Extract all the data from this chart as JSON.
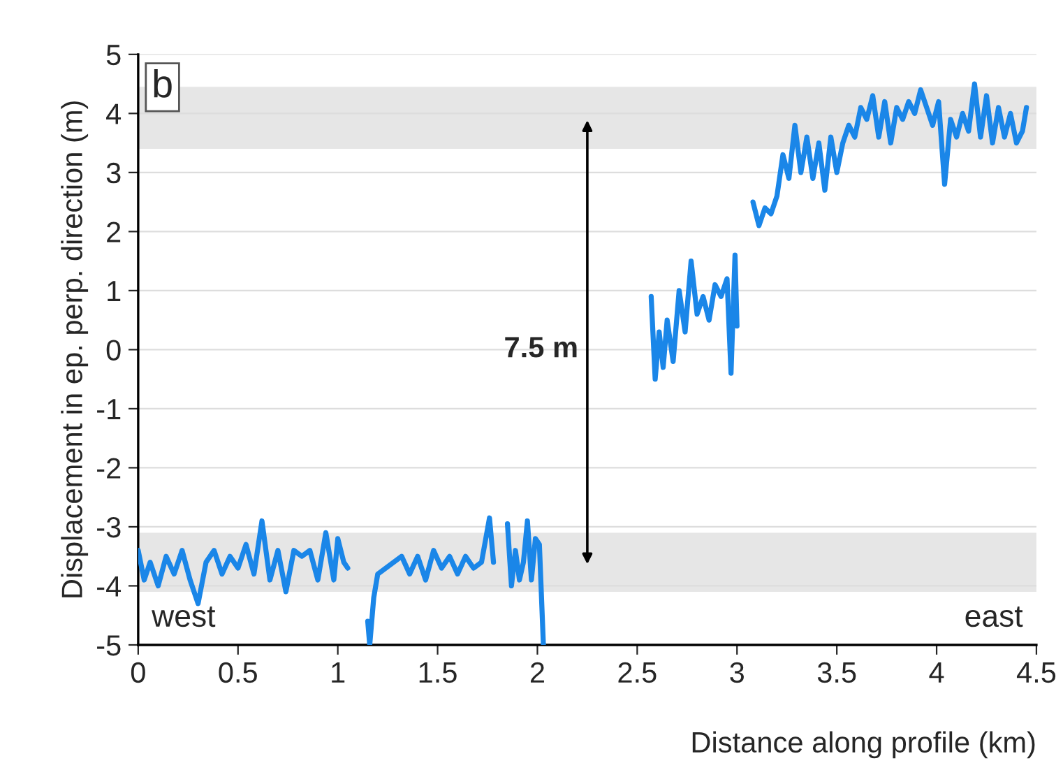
{
  "chart_data": {
    "type": "line",
    "xlabel": "Distance along profile (km)",
    "ylabel": "Displacement in ep. perp. direction (m)",
    "xlim": [
      0,
      4.5
    ],
    "xticks": [
      0,
      0.5,
      1,
      1.5,
      2,
      2.5,
      3,
      3.5,
      4,
      4.5
    ],
    "ylim": [
      -5,
      5
    ],
    "yticks": [
      -5,
      -4,
      -3,
      -2,
      -1,
      0,
      1,
      2,
      3,
      4,
      5
    ],
    "grid": "y",
    "legend": false,
    "marker": "none",
    "line_style": "solid",
    "series": [
      {
        "color": "#1a86e8",
        "x": [
          0,
          0.03,
          0.06,
          0.1,
          0.14,
          0.18,
          0.22,
          0.26,
          0.3,
          0.34,
          0.38,
          0.42,
          0.46,
          0.5,
          0.54,
          0.58,
          0.62,
          0.66,
          0.7,
          0.74,
          0.78,
          0.82,
          0.86,
          0.9,
          0.94,
          0.98,
          1.0,
          1.03,
          1.05,
          1.1,
          1.15,
          1.16,
          1.18,
          1.2,
          1.24,
          1.28,
          1.32,
          1.36,
          1.4,
          1.44,
          1.48,
          1.52,
          1.56,
          1.6,
          1.64,
          1.68,
          1.72,
          1.76,
          1.78,
          1.82,
          1.85,
          1.87,
          1.89,
          1.91,
          1.93,
          1.95,
          1.97,
          1.99,
          2.01,
          2.03,
          2.05,
          2.3,
          2.57,
          2.59,
          2.61,
          2.63,
          2.65,
          2.68,
          2.71,
          2.74,
          2.77,
          2.8,
          2.83,
          2.86,
          2.89,
          2.92,
          2.95,
          2.97,
          2.99,
          3.0,
          3.05,
          3.08,
          3.11,
          3.14,
          3.17,
          3.2,
          3.23,
          3.26,
          3.29,
          3.32,
          3.35,
          3.38,
          3.41,
          3.44,
          3.47,
          3.5,
          3.53,
          3.56,
          3.59,
          3.62,
          3.65,
          3.68,
          3.71,
          3.74,
          3.77,
          3.8,
          3.83,
          3.86,
          3.89,
          3.92,
          3.95,
          3.98,
          4.01,
          4.04,
          4.07,
          4.1,
          4.13,
          4.16,
          4.19,
          4.22,
          4.25,
          4.28,
          4.31,
          4.34,
          4.37,
          4.4,
          4.43,
          4.45
        ],
        "values": [
          -3.4,
          -3.9,
          -3.6,
          -4.0,
          -3.5,
          -3.8,
          -3.4,
          -3.9,
          -4.3,
          -3.6,
          -3.4,
          -3.8,
          -3.5,
          -3.7,
          -3.3,
          -3.8,
          -2.9,
          -3.9,
          -3.4,
          -4.1,
          -3.4,
          -3.5,
          -3.4,
          -3.9,
          -3.1,
          -3.9,
          -3.2,
          -3.6,
          -3.7,
          null,
          -4.6,
          -5.0,
          -4.2,
          -3.8,
          -3.7,
          -3.6,
          -3.5,
          -3.8,
          -3.5,
          -3.9,
          -3.4,
          -3.7,
          -3.5,
          -3.8,
          -3.5,
          -3.7,
          -3.6,
          -2.85,
          -3.6,
          null,
          -2.95,
          -4.0,
          -3.4,
          -3.9,
          -3.6,
          -2.9,
          -3.9,
          -3.2,
          -3.3,
          -5.0,
          null,
          null,
          0.9,
          -0.5,
          0.3,
          -0.3,
          0.5,
          -0.2,
          1.0,
          0.3,
          1.5,
          0.6,
          0.9,
          0.5,
          1.1,
          0.9,
          1.2,
          -0.4,
          1.6,
          0.4,
          null,
          2.5,
          2.1,
          2.4,
          2.3,
          2.6,
          3.3,
          2.9,
          3.8,
          3.0,
          3.6,
          2.9,
          3.5,
          2.7,
          3.6,
          3.0,
          3.5,
          3.8,
          3.6,
          4.1,
          3.9,
          4.3,
          3.6,
          4.2,
          3.5,
          4.1,
          3.9,
          4.2,
          4.0,
          4.4,
          4.1,
          3.8,
          4.2,
          2.8,
          3.9,
          3.6,
          4.0,
          3.7,
          4.5,
          3.6,
          4.3,
          3.5,
          4.1,
          3.6,
          4.0,
          3.5,
          3.7,
          4.1
        ]
      }
    ],
    "bands": [
      {
        "axis": "y",
        "from": 3.4,
        "to": 4.45,
        "color": "#e6e6e6"
      },
      {
        "axis": "y",
        "from": -4.1,
        "to": -3.1,
        "color": "#e6e6e6"
      }
    ],
    "annotations": [
      "b",
      "7.5 m",
      "west",
      "east"
    ]
  }
}
